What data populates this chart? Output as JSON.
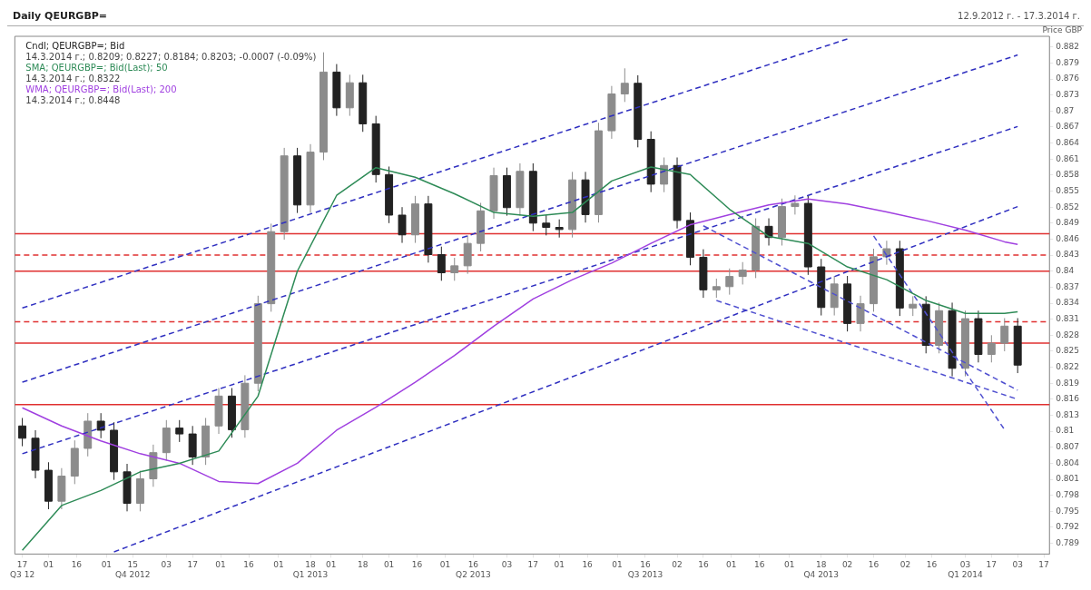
{
  "chart_data": {
    "type": "candlestick",
    "title": "Daily QEURGBP=",
    "subtitle": "12.9.2012 г. - 17.3.2014 г.",
    "ylabel": "Price GBP",
    "annotations": [
      "14.3.2014 г.; 0.8209; 0.8227; 0.8184; 0.8203; -0.0007 (-0.09%)",
      "14.3.2014 г.; 0.8322",
      "14.3.2014 г.; 0.8448"
    ],
    "legend": "top left",
    "xlim": [
      "2012-09-13",
      "2014-03-20"
    ],
    "xticks": [
      {
        "value": "2012-09-17",
        "label": "17\nQ3 12"
      },
      {
        "value": "2012-10-01",
        "label": "01"
      },
      {
        "value": "2012-10-16",
        "label": "16"
      },
      {
        "value": "2012-11-01",
        "label": "01"
      },
      {
        "value": "2012-11-15",
        "label": "15\nQ4 2012"
      },
      {
        "value": "2012-12-03",
        "label": "03"
      },
      {
        "value": "2012-12-17",
        "label": "17"
      },
      {
        "value": "2013-01-01",
        "label": "01"
      },
      {
        "value": "2013-01-16",
        "label": "16"
      },
      {
        "value": "2013-02-01",
        "label": "01"
      },
      {
        "value": "2013-02-18",
        "label": "18\nQ1 2013"
      },
      {
        "value": "2013-03-01",
        "label": "01"
      },
      {
        "value": "2013-03-18",
        "label": "18"
      },
      {
        "value": "2013-04-01",
        "label": "01"
      },
      {
        "value": "2013-04-16",
        "label": "16"
      },
      {
        "value": "2013-05-01",
        "label": "01"
      },
      {
        "value": "2013-05-16",
        "label": "16\nQ2 2013"
      },
      {
        "value": "2013-06-03",
        "label": "03"
      },
      {
        "value": "2013-06-17",
        "label": "17"
      },
      {
        "value": "2013-07-01",
        "label": "01"
      },
      {
        "value": "2013-07-16",
        "label": "16"
      },
      {
        "value": "2013-08-01",
        "label": "01"
      },
      {
        "value": "2013-08-16",
        "label": "16\nQ3 2013"
      },
      {
        "value": "2013-09-02",
        "label": "02"
      },
      {
        "value": "2013-09-16",
        "label": "16"
      },
      {
        "value": "2013-10-01",
        "label": "01"
      },
      {
        "value": "2013-10-16",
        "label": "16"
      },
      {
        "value": "2013-11-01",
        "label": "01"
      },
      {
        "value": "2013-11-18",
        "label": "18\nQ4 2013"
      },
      {
        "value": "2013-12-02",
        "label": "02"
      },
      {
        "value": "2013-12-16",
        "label": "16"
      },
      {
        "value": "2014-01-02",
        "label": "02"
      },
      {
        "value": "2014-01-16",
        "label": "16"
      },
      {
        "value": "2014-02-03",
        "label": "03\nQ1 2014"
      },
      {
        "value": "2014-02-17",
        "label": "17"
      },
      {
        "value": "2014-03-03",
        "label": "03"
      },
      {
        "value": "2014-03-17",
        "label": "17"
      }
    ],
    "ylim": [
      0.787,
      0.884
    ],
    "yticks": [
      0.789,
      0.792,
      0.795,
      0.798,
      0.801,
      0.804,
      0.807,
      0.81,
      0.813,
      0.816,
      0.819,
      0.822,
      0.825,
      0.828,
      0.831,
      0.834,
      0.837,
      0.84,
      0.843,
      0.846,
      0.849,
      0.852,
      0.855,
      0.858,
      0.861,
      0.864,
      0.867,
      0.87,
      0.873,
      0.876,
      0.879,
      0.882
    ],
    "series": [
      {
        "name": "Cndl; QEURGBP=; Bid",
        "color": "#222222",
        "colors": [
          "#222222",
          "#222222",
          "#222222",
          "#8c8c8c",
          "#8c8c8c",
          "#8c8c8c",
          "#222222",
          "#222222",
          "#222222",
          "#8c8c8c",
          "#8c8c8c",
          "#8c8c8c",
          "#222222",
          "#222222",
          "#8c8c8c",
          "#8c8c8c",
          "#222222",
          "#8c8c8c",
          "#8c8c8c",
          "#8c8c8c",
          "#8c8c8c",
          "#222222",
          "#8c8c8c",
          "#8c8c8c",
          "#222222",
          "#8c8c8c",
          "#222222",
          "#222222",
          "#222222",
          "#222222",
          "#8c8c8c",
          "#222222",
          "#222222",
          "#8c8c8c",
          "#8c8c8c",
          "#8c8c8c",
          "#8c8c8c",
          "#222222",
          "#8c8c8c",
          "#222222",
          "#222222",
          "#222222",
          "#8c8c8c",
          "#222222",
          "#8c8c8c",
          "#8c8c8c",
          "#8c8c8c",
          "#222222",
          "#222222",
          "#8c8c8c",
          "#222222",
          "#222222",
          "#222222",
          "#8c8c8c",
          "#8c8c8c",
          "#8c8c8c",
          "#8c8c8c",
          "#222222",
          "#8c8c8c",
          "#8c8c8c",
          "#222222",
          "#222222",
          "#8c8c8c",
          "#222222",
          "#8c8c8c",
          "#8c8c8c",
          "#8c8c8c",
          "#222222",
          "#8c8c8c",
          "#222222",
          "#8c8c8c",
          "#222222",
          "#8c8c8c",
          "#222222",
          "#8c8c8c",
          "#8c8c8c",
          "#222222"
        ],
        "x": [
          "2012-09-17",
          "2012-09-24",
          "2012-10-01",
          "2012-10-08",
          "2012-10-15",
          "2012-10-22",
          "2012-10-29",
          "2012-11-05",
          "2012-11-12",
          "2012-11-19",
          "2012-11-26",
          "2012-12-03",
          "2012-12-10",
          "2012-12-17",
          "2012-12-24",
          "2012-12-31",
          "2013-01-07",
          "2013-01-14",
          "2013-01-21",
          "2013-01-28",
          "2013-02-04",
          "2013-02-11",
          "2013-02-18",
          "2013-02-25",
          "2013-03-04",
          "2013-03-11",
          "2013-03-18",
          "2013-03-25",
          "2013-04-01",
          "2013-04-08",
          "2013-04-15",
          "2013-04-22",
          "2013-04-29",
          "2013-05-06",
          "2013-05-13",
          "2013-05-20",
          "2013-05-27",
          "2013-06-03",
          "2013-06-10",
          "2013-06-17",
          "2013-06-24",
          "2013-07-01",
          "2013-07-08",
          "2013-07-15",
          "2013-07-22",
          "2013-07-29",
          "2013-08-05",
          "2013-08-12",
          "2013-08-19",
          "2013-08-26",
          "2013-09-02",
          "2013-09-09",
          "2013-09-16",
          "2013-09-23",
          "2013-09-30",
          "2013-10-07",
          "2013-10-14",
          "2013-10-21",
          "2013-10-28",
          "2013-11-04",
          "2013-11-11",
          "2013-11-18",
          "2013-11-25",
          "2013-12-02",
          "2013-12-09",
          "2013-12-16",
          "2013-12-23",
          "2013-12-30",
          "2014-01-06",
          "2014-01-13",
          "2014-01-20",
          "2014-01-27",
          "2014-02-03",
          "2014-02-10",
          "2014-02-17",
          "2014-02-24",
          "2014-03-03"
        ],
        "ohlc": [
          [
            0.811,
            0.8125,
            0.8072,
            0.8087
          ],
          [
            0.8087,
            0.8102,
            0.8012,
            0.8027
          ],
          [
            0.8027,
            0.8042,
            0.7954,
            0.7969
          ],
          [
            0.7969,
            0.8031,
            0.7954,
            0.8016
          ],
          [
            0.8016,
            0.8083,
            0.8001,
            0.8068
          ],
          [
            0.8068,
            0.8134,
            0.8053,
            0.8119
          ],
          [
            0.8119,
            0.8134,
            0.8087,
            0.8102
          ],
          [
            0.8102,
            0.8117,
            0.8009,
            0.8024
          ],
          [
            0.8024,
            0.8039,
            0.795,
            0.7965
          ],
          [
            0.7965,
            0.8026,
            0.795,
            0.8011
          ],
          [
            0.8011,
            0.8075,
            0.7996,
            0.806
          ],
          [
            0.806,
            0.8121,
            0.8045,
            0.8106
          ],
          [
            0.8106,
            0.8121,
            0.808,
            0.8095
          ],
          [
            0.8095,
            0.811,
            0.8037,
            0.8052
          ],
          [
            0.8052,
            0.8125,
            0.8037,
            0.811
          ],
          [
            0.811,
            0.8181,
            0.8095,
            0.8166
          ],
          [
            0.8166,
            0.8181,
            0.8088,
            0.8103
          ],
          [
            0.8103,
            0.8205,
            0.8088,
            0.819
          ],
          [
            0.819,
            0.8354,
            0.8175,
            0.8339
          ],
          [
            0.8339,
            0.8489,
            0.8324,
            0.8474
          ],
          [
            0.8474,
            0.8631,
            0.8459,
            0.8616
          ],
          [
            0.8616,
            0.8631,
            0.8509,
            0.8524
          ],
          [
            0.8524,
            0.8638,
            0.8509,
            0.8623
          ],
          [
            0.8623,
            0.881,
            0.8608,
            0.8773
          ],
          [
            0.8773,
            0.8788,
            0.8691,
            0.8706
          ],
          [
            0.8706,
            0.8768,
            0.8691,
            0.8753
          ],
          [
            0.8753,
            0.8768,
            0.8661,
            0.8676
          ],
          [
            0.8676,
            0.8691,
            0.8566,
            0.8581
          ],
          [
            0.8581,
            0.8596,
            0.849,
            0.8505
          ],
          [
            0.8505,
            0.852,
            0.8453,
            0.8468
          ],
          [
            0.8468,
            0.8541,
            0.8453,
            0.8526
          ],
          [
            0.8526,
            0.8541,
            0.8416,
            0.8431
          ],
          [
            0.8431,
            0.8446,
            0.8382,
            0.8397
          ],
          [
            0.8397,
            0.8425,
            0.8382,
            0.841
          ],
          [
            0.841,
            0.8467,
            0.8395,
            0.8452
          ],
          [
            0.8452,
            0.8528,
            0.8437,
            0.8513
          ],
          [
            0.8513,
            0.8594,
            0.8498,
            0.8579
          ],
          [
            0.8579,
            0.8594,
            0.8504,
            0.8519
          ],
          [
            0.8519,
            0.8602,
            0.8504,
            0.8587
          ],
          [
            0.8587,
            0.8602,
            0.8475,
            0.849
          ],
          [
            0.849,
            0.8505,
            0.8467,
            0.8482
          ],
          [
            0.8482,
            0.8497,
            0.8463,
            0.8478
          ],
          [
            0.8478,
            0.8586,
            0.8463,
            0.8571
          ],
          [
            0.8571,
            0.8586,
            0.8491,
            0.8506
          ],
          [
            0.8506,
            0.8678,
            0.8491,
            0.8663
          ],
          [
            0.8663,
            0.8747,
            0.8648,
            0.8732
          ],
          [
            0.8732,
            0.878,
            0.8717,
            0.8752
          ],
          [
            0.8752,
            0.8767,
            0.8632,
            0.8647
          ],
          [
            0.8647,
            0.8662,
            0.8548,
            0.8563
          ],
          [
            0.8563,
            0.8613,
            0.8548,
            0.8598
          ],
          [
            0.8598,
            0.8613,
            0.848,
            0.8495
          ],
          [
            0.8495,
            0.851,
            0.8411,
            0.8426
          ],
          [
            0.8426,
            0.8441,
            0.835,
            0.8365
          ],
          [
            0.8365,
            0.8386,
            0.835,
            0.8371
          ],
          [
            0.8371,
            0.8405,
            0.8356,
            0.839
          ],
          [
            0.839,
            0.8417,
            0.8375,
            0.8402
          ],
          [
            0.8402,
            0.8499,
            0.8387,
            0.8484
          ],
          [
            0.8484,
            0.8499,
            0.8448,
            0.8463
          ],
          [
            0.8463,
            0.8536,
            0.8448,
            0.8521
          ],
          [
            0.8521,
            0.8542,
            0.8506,
            0.8527
          ],
          [
            0.8527,
            0.8542,
            0.8393,
            0.8408
          ],
          [
            0.8408,
            0.8423,
            0.8317,
            0.8332
          ],
          [
            0.8332,
            0.8391,
            0.8317,
            0.8376
          ],
          [
            0.8376,
            0.8391,
            0.8287,
            0.8302
          ],
          [
            0.8302,
            0.8354,
            0.8287,
            0.8339
          ],
          [
            0.8339,
            0.8442,
            0.8324,
            0.8427
          ],
          [
            0.8427,
            0.8457,
            0.8412,
            0.8442
          ],
          [
            0.8442,
            0.8457,
            0.8316,
            0.8331
          ],
          [
            0.8331,
            0.8353,
            0.8316,
            0.8338
          ],
          [
            0.8338,
            0.8353,
            0.8246,
            0.8261
          ],
          [
            0.8261,
            0.8341,
            0.8246,
            0.8326
          ],
          [
            0.8326,
            0.8341,
            0.8203,
            0.8218
          ],
          [
            0.8218,
            0.8326,
            0.8203,
            0.8311
          ],
          [
            0.8311,
            0.8326,
            0.8229,
            0.8244
          ],
          [
            0.8244,
            0.828,
            0.8229,
            0.8265
          ],
          [
            0.8265,
            0.8312,
            0.825,
            0.8297
          ],
          [
            0.8297,
            0.8312,
            0.8209,
            0.8224
          ]
        ]
      },
      {
        "type": "line",
        "name": "SMA; QEURGBP=; Bid(Last); 50",
        "color": "#2e8b57",
        "x": [
          "2012-09-17",
          "2012-10-08",
          "2012-10-29",
          "2012-11-19",
          "2012-12-10",
          "2012-12-31",
          "2013-01-21",
          "2013-02-11",
          "2013-03-04",
          "2013-03-25",
          "2013-04-15",
          "2013-05-06",
          "2013-05-27",
          "2013-06-17",
          "2013-07-08",
          "2013-07-29",
          "2013-08-19",
          "2013-09-09",
          "2013-09-30",
          "2013-10-21",
          "2013-11-11",
          "2013-12-02",
          "2013-12-23",
          "2014-01-13",
          "2014-02-03",
          "2014-02-24",
          "2014-03-03"
        ],
        "values": [
          0.7877,
          0.7961,
          0.7989,
          0.8024,
          0.804,
          0.8063,
          0.8166,
          0.84,
          0.8542,
          0.8594,
          0.8576,
          0.8545,
          0.851,
          0.8503,
          0.851,
          0.8569,
          0.8595,
          0.8581,
          0.8516,
          0.8465,
          0.8452,
          0.8408,
          0.8384,
          0.8345,
          0.8321,
          0.8321,
          0.8324
        ]
      },
      {
        "type": "line",
        "name": "WMA; QEURGBP=; Bid(Last); 200",
        "color": "#a040e0",
        "x": [
          "2012-09-17",
          "2012-10-08",
          "2012-10-29",
          "2012-11-19",
          "2012-12-10",
          "2012-12-31",
          "2013-01-21",
          "2013-02-11",
          "2013-03-04",
          "2013-03-25",
          "2013-04-15",
          "2013-05-06",
          "2013-05-27",
          "2013-06-17",
          "2013-07-08",
          "2013-07-29",
          "2013-08-19",
          "2013-09-09",
          "2013-09-30",
          "2013-10-21",
          "2013-11-11",
          "2013-12-02",
          "2013-12-23",
          "2014-01-13",
          "2014-02-03",
          "2014-02-24",
          "2014-03-03"
        ],
        "values": [
          0.8144,
          0.811,
          0.8082,
          0.8058,
          0.804,
          0.8006,
          0.8002,
          0.804,
          0.8102,
          0.8145,
          0.8192,
          0.8242,
          0.8297,
          0.8348,
          0.8384,
          0.8415,
          0.8452,
          0.8487,
          0.8506,
          0.8524,
          0.8535,
          0.8526,
          0.8511,
          0.8495,
          0.8477,
          0.8455,
          0.845
        ]
      },
      {
        "type": "line",
        "color": "#3030c0",
        "line_style": "dashed",
        "x": [
          "2012-09-17",
          "2013-12-02"
        ],
        "values": [
          0.8331,
          0.8835
        ]
      },
      {
        "type": "line",
        "color": "#3030c0",
        "line_style": "dashed",
        "x": [
          "2012-09-17",
          "2014-03-03"
        ],
        "values": [
          0.8192,
          0.8805
        ]
      },
      {
        "type": "line",
        "color": "#3030c0",
        "line_style": "dashed",
        "x": [
          "2012-09-17",
          "2014-03-03"
        ],
        "values": [
          0.8058,
          0.8671
        ]
      },
      {
        "type": "line",
        "color": "#3030c0",
        "line_style": "dashed",
        "x": [
          "2012-11-05",
          "2014-03-03"
        ],
        "values": [
          0.7874,
          0.8521
        ]
      },
      {
        "type": "line",
        "color": "#5050d0",
        "line_style": "dashed",
        "x": [
          "2013-09-16",
          "2014-03-03"
        ],
        "values": [
          0.8485,
          0.8177
        ]
      },
      {
        "type": "line",
        "color": "#5050d0",
        "line_style": "dashed",
        "x": [
          "2013-09-23",
          "2014-03-03"
        ],
        "values": [
          0.8345,
          0.816
        ]
      },
      {
        "type": "line",
        "color": "#5050d0",
        "line_style": "dashed",
        "x": [
          "2013-12-16",
          "2014-02-24"
        ],
        "values": [
          0.8466,
          0.8103
        ]
      }
    ],
    "ref_lines": [
      {
        "axis": "y",
        "value": 0.847,
        "color": "#e03030",
        "line_style": "solid"
      },
      {
        "axis": "y",
        "value": 0.843,
        "color": "#e03030",
        "line_style": "dashed"
      },
      {
        "axis": "y",
        "value": 0.84,
        "color": "#e03030",
        "line_style": "solid"
      },
      {
        "axis": "y",
        "value": 0.8305,
        "color": "#e03030",
        "line_style": "dashed"
      },
      {
        "axis": "y",
        "value": 0.8265,
        "color": "#e03030",
        "line_style": "solid"
      },
      {
        "axis": "y",
        "value": 0.815,
        "color": "#e03030",
        "line_style": "solid"
      }
    ]
  }
}
